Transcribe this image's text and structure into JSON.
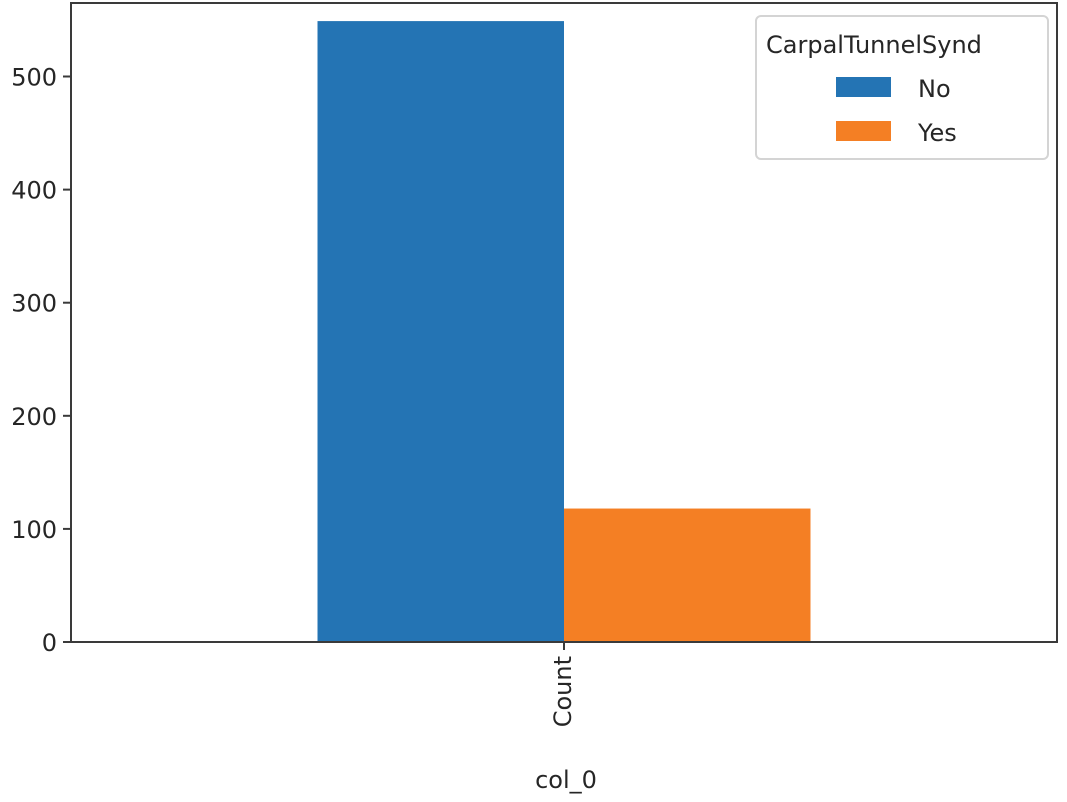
{
  "chart_data": {
    "type": "bar",
    "categories": [
      "Count"
    ],
    "series": [
      {
        "name": "No",
        "values": [
          549
        ],
        "color": "#2474b4"
      },
      {
        "name": "Yes",
        "values": [
          118
        ],
        "color": "#f47f24"
      }
    ],
    "xlabel": "col_0",
    "ylabel": "",
    "ylim": [
      0,
      565
    ],
    "yticks": [
      0,
      100,
      200,
      300,
      400,
      500
    ],
    "grid": false,
    "legend": {
      "title": "CarpalTunnelSynd",
      "position": "top-right"
    }
  }
}
